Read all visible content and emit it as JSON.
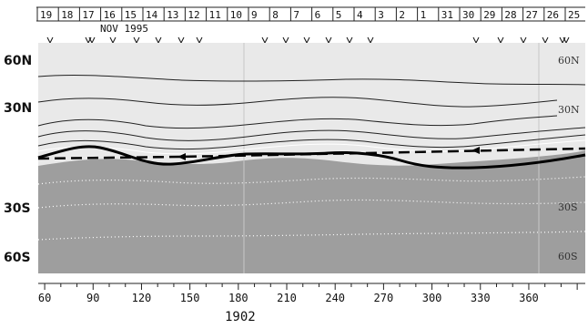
{
  "figure": {
    "year": "1902",
    "month_label": "NOV 1995",
    "date_ticks": [
      "19",
      "18",
      "17",
      "16",
      "15",
      "14",
      "13",
      "12",
      "11",
      "10",
      "9",
      "8",
      "7",
      "6",
      "5",
      "4",
      "3",
      "2",
      "1",
      "31",
      "30",
      "29",
      "28",
      "27",
      "26",
      "25"
    ],
    "left_lat_labels": [
      "60N",
      "30N",
      "30S",
      "60S"
    ],
    "right_lat_labels": [
      "60N",
      "30N",
      "30S",
      "60S"
    ],
    "lon_ticks": [
      60,
      90,
      120,
      150,
      180,
      210,
      240,
      270,
      300,
      330,
      360
    ],
    "lon_range": [
      56,
      395
    ],
    "colors": {
      "north_fill": "#e9e9e9",
      "south_fill": "#9e9e9e",
      "contour": "#222222",
      "thick_line": "#000000",
      "dotted": "#ffffff",
      "ref_line": "#c8c8c8"
    }
  }
}
